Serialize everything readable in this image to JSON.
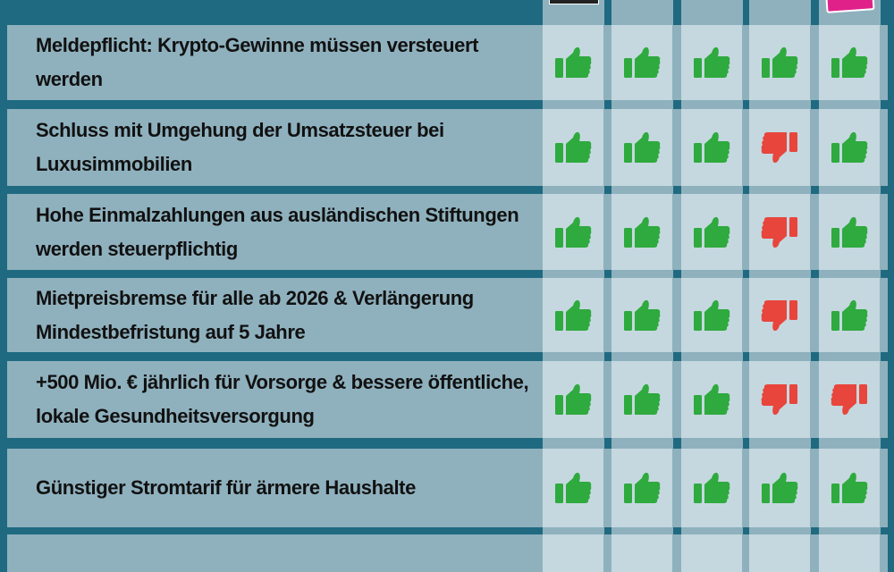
{
  "colors": {
    "background": "#1f6a80",
    "row": "#8fb1be",
    "cell": "#c5d8df",
    "yes": "#2eaa3e",
    "no": "#e8453c"
  },
  "columns": [
    "party-1",
    "party-2",
    "party-3",
    "party-4",
    "party-5"
  ],
  "rows": [
    {
      "label": "Meldepflicht: Krypto-Gewinne müssen versteuert werden",
      "votes": [
        "up",
        "up",
        "up",
        "up",
        "up"
      ]
    },
    {
      "label": "Schluss mit Umgehung der Umsatzsteuer bei Luxusimmobilien",
      "votes": [
        "up",
        "up",
        "up",
        "down",
        "up"
      ]
    },
    {
      "label": "Hohe Einmalzahlungen aus ausländischen Stiftungen werden steuerpflichtig",
      "votes": [
        "up",
        "up",
        "up",
        "down",
        "up"
      ]
    },
    {
      "label": "Mietpreisbremse für alle ab 2026 & Verlängerung Mindestbefristung auf 5 Jahre",
      "votes": [
        "up",
        "up",
        "up",
        "down",
        "up"
      ]
    },
    {
      "label": "+500 Mio. € jährlich für Vorsorge & bessere öffentliche, lokale Gesundheitsversorgung",
      "votes": [
        "up",
        "up",
        "up",
        "down",
        "down"
      ]
    },
    {
      "label": "Günstiger Stromtarif für ärmere Haushalte",
      "votes": [
        "up",
        "up",
        "up",
        "up",
        "up"
      ]
    }
  ]
}
